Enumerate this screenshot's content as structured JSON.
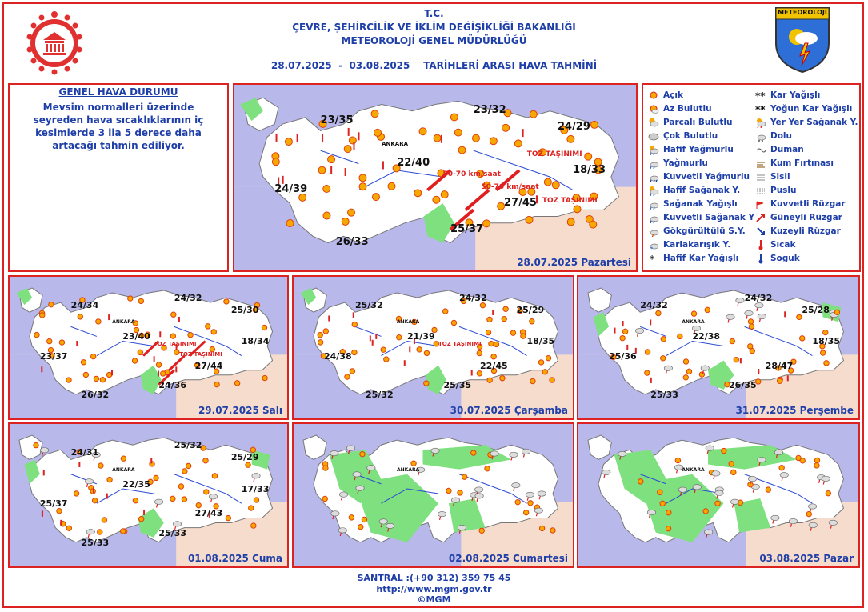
{
  "header": {
    "line1": "T.C.",
    "line2": "ÇEVRE, ŞEHİRCİLİK VE İKLİM DEĞİŞİKLİĞİ BAKANLIĞI",
    "line3": "METEOROLOJİ GENEL MÜDÜRLÜĞÜ",
    "period": "28.07.2025  -  03.08.2025    TARİHLERİ ARASI HAVA TAHMİNİ",
    "logo_right_text": "METEOROLOJİ"
  },
  "genel": {
    "title": "GENEL HAVA DURUMU",
    "text": "Mevsim normalleri üzerinde seyreden hava sıcaklıklarının iç kesimlerde 3 ila 5 derece daha artacağı tahmin ediliyor."
  },
  "legend": [
    {
      "icon": "sun-icon",
      "label": "Açık"
    },
    {
      "icon": "sun-cloud-icon",
      "label": "Az Bulutlu"
    },
    {
      "icon": "partly-cloudy-icon",
      "label": "Parçalı Bulutlu"
    },
    {
      "icon": "cloud-icon",
      "label": "Çok Bulutlu"
    },
    {
      "icon": "light-rain-icon",
      "label": "Hafif Yağmurlu"
    },
    {
      "icon": "rain-icon",
      "label": "Yağmurlu"
    },
    {
      "icon": "heavy-rain-icon",
      "label": "Kuvvetli Yağmurlu"
    },
    {
      "icon": "light-shower-icon",
      "label": "Hafif Sağanak Y."
    },
    {
      "icon": "shower-icon",
      "label": "Sağanak Yağışlı"
    },
    {
      "icon": "heavy-shower-icon",
      "label": "Kuvvetli Sağanak Y"
    },
    {
      "icon": "thunder-icon",
      "label": "Gökgürültülü S.Y."
    },
    {
      "icon": "sleet-icon",
      "label": "Karlakarışık Y."
    },
    {
      "icon": "light-snow-icon",
      "label": "Hafif Kar Yağışlı"
    },
    {
      "icon": "snow-icon",
      "label": "Kar Yağışlı"
    },
    {
      "icon": "heavy-snow-icon",
      "label": "Yoğun Kar Yağışlı"
    },
    {
      "icon": "local-shower-icon",
      "label": "Yer Yer Sağanak Y."
    },
    {
      "icon": "hail-icon",
      "label": "Dolu"
    },
    {
      "icon": "smoke-icon",
      "label": "Duman"
    },
    {
      "icon": "sandstorm-icon",
      "label": "Kum Fırtınası"
    },
    {
      "icon": "fog-icon",
      "label": "Sisli"
    },
    {
      "icon": "mist-icon",
      "label": "Puslu"
    },
    {
      "icon": "strong-wind-icon",
      "label": "Kuvvetli Rüzgar"
    },
    {
      "icon": "south-wind-arrow-icon",
      "label": "Güneyli Rüzgar"
    },
    {
      "icon": "north-wind-arrow-icon",
      "label": "Kuzeyli Rüzgar"
    },
    {
      "icon": "hot-thermometer-icon",
      "label": "Sıcak"
    },
    {
      "icon": "cold-thermometer-icon",
      "label": "Soguk"
    }
  ],
  "colors": {
    "border": "#dd2222",
    "title": "#1f3fa8",
    "sun": "#f6a800",
    "sea": "#b8b8ea",
    "land": "#ffffff",
    "rain_area": "#7fe07f",
    "outside": "#f6dccd"
  },
  "maps": [
    {
      "date": "28.07.2025 Pazartesi",
      "temps": [
        "23/35",
        "23/32",
        "24/29",
        "22/40",
        "18/33",
        "24/39",
        "27/45",
        "25/37",
        "26/33"
      ],
      "annotations": [
        "50-70 km/saat",
        "50-70 km/saat",
        "TOZ TAŞINIMI",
        "TOZ TAŞINIMI"
      ],
      "city_label": "ANKARA",
      "rain_area": "low"
    },
    {
      "date": "29.07.2025 Salı",
      "temps": [
        "24/34",
        "24/32",
        "25/30",
        "23/40",
        "18/34",
        "23/37",
        "27/44",
        "24/36",
        "26/32"
      ],
      "annotations": [
        "TOZ TAŞINIMI",
        "TOZ TAŞINIMI"
      ],
      "city_label": "ANKARA",
      "rain_area": "low"
    },
    {
      "date": "30.07.2025 Çarşamba",
      "temps": [
        "25/32",
        "24/32",
        "25/29",
        "21/39",
        "18/35",
        "24/38",
        "22/45",
        "25/35",
        "25/32"
      ],
      "annotations": [
        "TOZ TAŞINIMI"
      ],
      "city_label": "ANKARA",
      "rain_area": "low"
    },
    {
      "date": "31.07.2025 Perşembe",
      "temps": [
        "24/32",
        "24/32",
        "25/28",
        "22/38",
        "18/35",
        "25/36",
        "28/47",
        "26/35",
        "25/33"
      ],
      "annotations": [],
      "city_label": "ANKARA",
      "rain_area": "medium"
    },
    {
      "date": "01.08.2025 Cuma",
      "temps": [
        "24/31",
        "25/32",
        "25/29",
        "22/35",
        "17/33",
        "25/37",
        "27/43",
        "25/33",
        "25/33"
      ],
      "annotations": [],
      "city_label": "ANKARA",
      "rain_area": "medium"
    },
    {
      "date": "02.08.2025 Cumartesi",
      "temps": [],
      "annotations": [],
      "city_label": "ANKARA",
      "rain_area": "high"
    },
    {
      "date": "03.08.2025 Pazar",
      "temps": [],
      "annotations": [],
      "city_label": "ANKARA",
      "rain_area": "high"
    }
  ],
  "footer": {
    "phone": "SANTRAL :(+90 312) 359 75 45",
    "url": "http://www.mgm.gov.tr",
    "copy": "©MGM"
  }
}
